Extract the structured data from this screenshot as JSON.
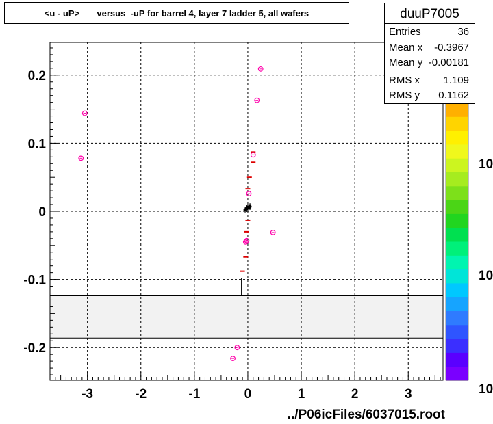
{
  "title": "<u - uP>       versus  -uP for barrel 4, layer 7 ladder 5, all wafers",
  "stats": {
    "name": "duuP7005",
    "rows": [
      {
        "label": "Entries",
        "value": "36"
      },
      {
        "label": "Mean x",
        "value": "-0.3967"
      },
      {
        "label": "Mean y",
        "value": "-0.00181"
      },
      {
        "label": "RMS x",
        "value": "1.109"
      },
      {
        "label": "RMS y",
        "value": "0.1162"
      }
    ]
  },
  "footer": "../P06icFiles/6037015.root",
  "colors": {
    "marker": "#ff00aa",
    "profile": "#dd0000",
    "black_points": "#000000",
    "band_fill": "#f2f2f2"
  },
  "palette": [
    "#7a00ff",
    "#5a00ff",
    "#3b2fff",
    "#2f55ff",
    "#2f7bff",
    "#16a4ff",
    "#00c8ff",
    "#00e5d8",
    "#00f5b0",
    "#00f07a",
    "#00e050",
    "#21d51f",
    "#4bd516",
    "#7de01a",
    "#a6ec1f",
    "#ccf51f",
    "#f0f81c",
    "#fff000",
    "#ffd400",
    "#ffb000"
  ],
  "chart_data": {
    "type": "scatter",
    "title": "<u - uP>       versus  -uP for barrel 4, layer 7 ladder 5, all wafers",
    "xlabel": "../P06icFiles/6037015.root",
    "ylabel": "",
    "xlim": [
      -3.7,
      3.65
    ],
    "ylim": [
      -0.248,
      0.248
    ],
    "x_ticks": [
      -3,
      -2,
      -1,
      0,
      1,
      2,
      3
    ],
    "y_ticks": [
      -0.2,
      -0.1,
      0,
      0.1,
      0.2
    ],
    "x_tick_labels": [
      "-3",
      "-2",
      "-1",
      "0",
      "1",
      "2",
      "3"
    ],
    "y_tick_labels": [
      "-0.2",
      "-0.1",
      "0",
      "0.1",
      "0.2"
    ],
    "grid": true,
    "colorbar_labels": [
      "10",
      "10",
      "10"
    ],
    "band": {
      "y_top": -0.124,
      "y_bottom": -0.186
    },
    "markers": [
      {
        "x": -3.05,
        "y": 0.144
      },
      {
        "x": -3.12,
        "y": 0.078
      },
      {
        "x": 0.24,
        "y": 0.209
      },
      {
        "x": 0.17,
        "y": 0.163
      },
      {
        "x": 0.1,
        "y": 0.083
      },
      {
        "x": 0.02,
        "y": 0.026
      },
      {
        "x": -0.02,
        "y": -0.043
      },
      {
        "x": -0.04,
        "y": -0.045
      },
      {
        "x": 0.47,
        "y": -0.031
      },
      {
        "x": -0.2,
        "y": -0.2
      },
      {
        "x": -0.28,
        "y": -0.216
      }
    ],
    "profile_marks": [
      {
        "x": -0.1,
        "y": -0.088
      },
      {
        "x": -0.04,
        "y": -0.067
      },
      {
        "x": -0.03,
        "y": -0.03
      },
      {
        "x": 0.0,
        "y": -0.013
      },
      {
        "x": 0.0,
        "y": 0.033
      },
      {
        "x": 0.03,
        "y": 0.05
      },
      {
        "x": 0.1,
        "y": 0.072
      },
      {
        "x": 0.1,
        "y": 0.087
      }
    ],
    "black_points": [
      {
        "x": -0.05,
        "y": 0.002
      },
      {
        "x": -0.02,
        "y": 0.004
      },
      {
        "x": 0.0,
        "y": 0.006
      },
      {
        "x": 0.02,
        "y": 0.005
      },
      {
        "x": 0.04,
        "y": 0.007
      }
    ],
    "error_bar_x": -0.12,
    "error_bar_y": [
      -0.124,
      -0.098
    ]
  }
}
